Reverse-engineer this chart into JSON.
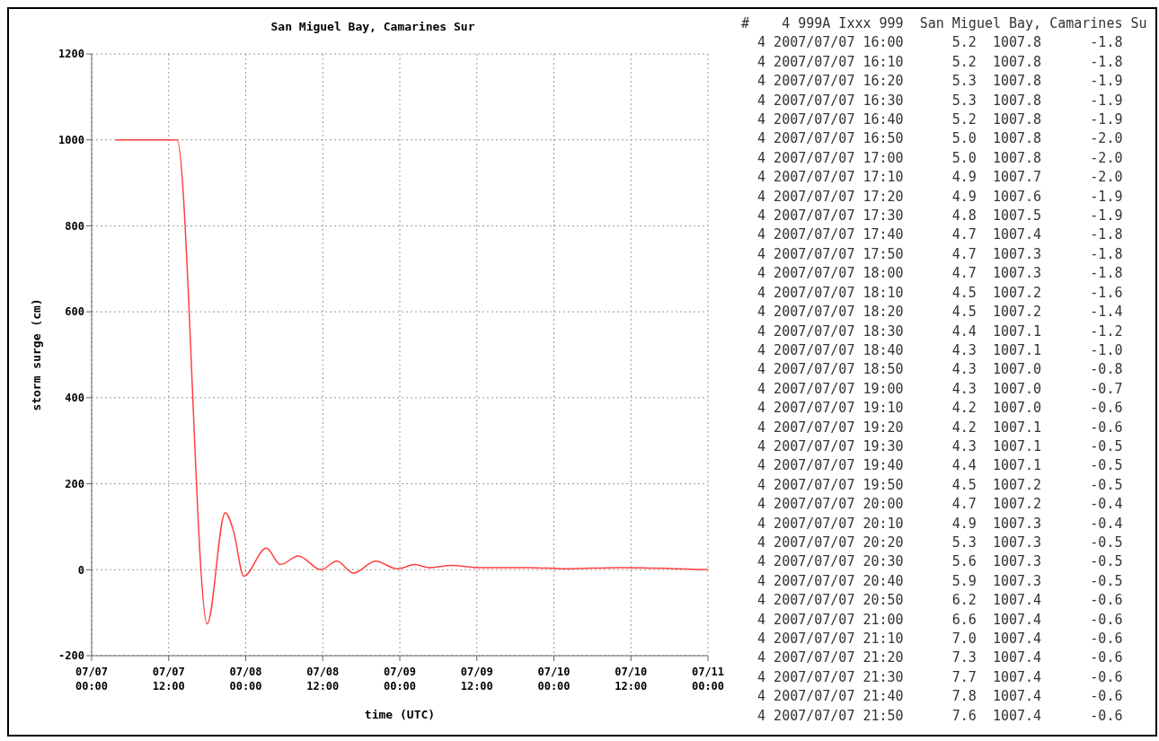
{
  "chart_data": [
    {
      "type": "line",
      "title": "San Miguel Bay, Camarines Sur",
      "xlabel": "time (UTC)",
      "ylabel": "storm surge (cm)",
      "xlim": [
        "--07-07T00:00",
        "--07-11T00:00"
      ],
      "xticks": [
        {
          "value": "--07-07T00:00",
          "label": "07/07\n00:00"
        },
        {
          "value": "--07-07T12:00",
          "label": "07/07\n12:00"
        },
        {
          "value": "--07-08T00:00",
          "label": "07/08\n00:00"
        },
        {
          "value": "--07-08T12:00",
          "label": "07/08\n12:00"
        },
        {
          "value": "--07-09T00:00",
          "label": "07/09\n00:00"
        },
        {
          "value": "--07-09T12:00",
          "label": "07/09\n12:00"
        },
        {
          "value": "--07-10T00:00",
          "label": "07/10\n00:00"
        },
        {
          "value": "--07-10T12:00",
          "label": "07/10\n12:00"
        },
        {
          "value": "--07-11T00:00",
          "label": "07/11\n00:00"
        }
      ],
      "ylim": [
        -200,
        1200
      ],
      "yticks": [
        -200,
        0,
        200,
        400,
        600,
        800,
        1000,
        1200
      ],
      "grid": true,
      "marker": "none",
      "line_style": "solid",
      "series": [
        {
          "color": "#ff4040",
          "x": [
            "--07-07T03:42",
            "--07-07T13:18",
            "--07-07T18:00",
            "--07-07T20:48",
            "--07-07T22:06",
            "--07-07T23:42",
            "--07-08T03:12",
            "--07-08T05:24",
            "--07-08T08:12",
            "--07-08T11:42",
            "--07-08T14:12",
            "--07-08T16:48",
            "--07-08T20:12",
            "--07-08T23:36",
            "--07-09T02:24",
            "--07-09T04:30",
            "--07-09T08:06",
            "--07-09T12:18",
            "--07-09T20:12",
            "--07-10T01:54",
            "--07-10T10:24",
            "--07-11T00:00"
          ],
          "values": [
            1000,
            1000,
            -126,
            133,
            90,
            -15,
            50,
            12,
            32,
            0,
            20,
            -8,
            20,
            2,
            12,
            5,
            10,
            5,
            5,
            2,
            5,
            0
          ]
        }
      ]
    },
    {
      "type": "other",
      "title": "#    4 999A Ixxx 999  San Miguel Bay, Camarines Su",
      "annotations": [
        "4 2007/07/07 16:00      5.2  1007.8      -1.8",
        "4 2007/07/07 16:10      5.2  1007.8      -1.8",
        "4 2007/07/07 16:20      5.3  1007.8      -1.9",
        "4 2007/07/07 16:30      5.3  1007.8      -1.9",
        "4 2007/07/07 16:40      5.2  1007.8      -1.9",
        "4 2007/07/07 16:50      5.0  1007.8      -2.0",
        "4 2007/07/07 17:00      5.0  1007.8      -2.0",
        "4 2007/07/07 17:10      4.9  1007.7      -2.0",
        "4 2007/07/07 17:20      4.9  1007.6      -1.9",
        "4 2007/07/07 17:30      4.8  1007.5      -1.9",
        "4 2007/07/07 17:40      4.7  1007.4      -1.8",
        "4 2007/07/07 17:50      4.7  1007.3      -1.8",
        "4 2007/07/07 18:00      4.7  1007.3      -1.8",
        "4 2007/07/07 18:10      4.5  1007.2      -1.6",
        "4 2007/07/07 18:20      4.5  1007.2      -1.4",
        "4 2007/07/07 18:30      4.4  1007.1      -1.2",
        "4 2007/07/07 18:40      4.3  1007.1      -1.0",
        "4 2007/07/07 18:50      4.3  1007.0      -0.8",
        "4 2007/07/07 19:00      4.3  1007.0      -0.7",
        "4 2007/07/07 19:10      4.2  1007.0      -0.6",
        "4 2007/07/07 19:20      4.2  1007.1      -0.6",
        "4 2007/07/07 19:30      4.3  1007.1      -0.5",
        "4 2007/07/07 19:40      4.4  1007.1      -0.5",
        "4 2007/07/07 19:50      4.5  1007.2      -0.5",
        "4 2007/07/07 20:00      4.7  1007.2      -0.4",
        "4 2007/07/07 20:10      4.9  1007.3      -0.4",
        "4 2007/07/07 20:20      5.3  1007.3      -0.5",
        "4 2007/07/07 20:30      5.6  1007.3      -0.5",
        "4 2007/07/07 20:40      5.9  1007.3      -0.5",
        "4 2007/07/07 20:50      6.2  1007.4      -0.6",
        "4 2007/07/07 21:00      6.6  1007.4      -0.6",
        "4 2007/07/07 21:10      7.0  1007.4      -0.6",
        "4 2007/07/07 21:20      7.3  1007.4      -0.6",
        "4 2007/07/07 21:30      7.7  1007.4      -0.6",
        "4 2007/07/07 21:40      7.8  1007.4      -0.6",
        "4 2007/07/07 21:50      7.6  1007.4      -0.6"
      ]
    }
  ]
}
